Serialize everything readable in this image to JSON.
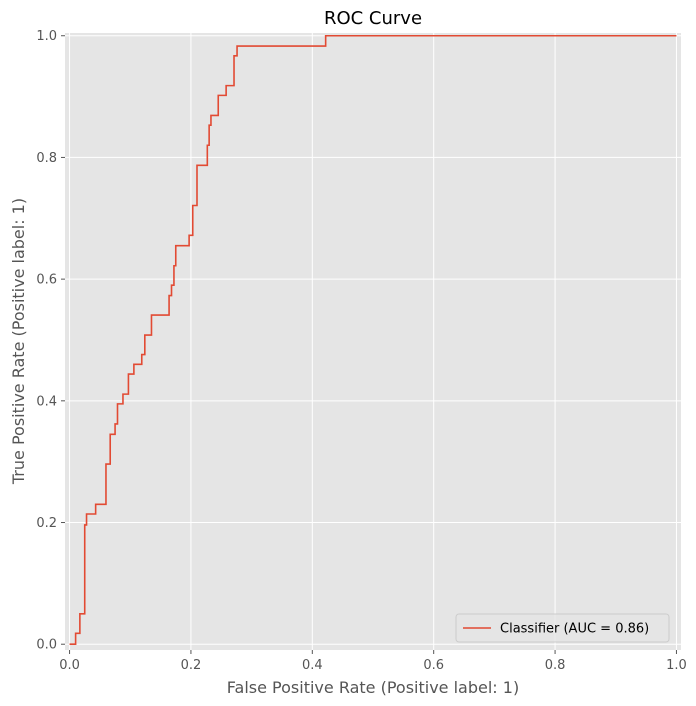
{
  "chart_data": {
    "type": "line",
    "title": "ROC Curve",
    "xlabel": "False Positive Rate (Positive label: 1)",
    "ylabel": "True Positive Rate (Positive label: 1)",
    "xlim": [
      0,
      1
    ],
    "ylim": [
      0,
      1
    ],
    "x_ticks": [
      "0.0",
      "0.2",
      "0.4",
      "0.6",
      "0.8",
      "1.0"
    ],
    "y_ticks": [
      "0.0",
      "0.2",
      "0.4",
      "0.6",
      "0.8",
      "1.0"
    ],
    "grid": true,
    "legend_position": "lower-right",
    "series": [
      {
        "name": "Classifier (AUC = 0.86)",
        "color": "#E24A33",
        "drawstyle": "steps-post",
        "x": [
          0.0,
          0.01,
          0.01,
          0.017,
          0.017,
          0.025,
          0.025,
          0.028,
          0.028,
          0.043,
          0.043,
          0.06,
          0.06,
          0.067,
          0.067,
          0.075,
          0.075,
          0.079,
          0.079,
          0.088,
          0.088,
          0.097,
          0.097,
          0.106,
          0.106,
          0.119,
          0.119,
          0.124,
          0.124,
          0.135,
          0.135,
          0.164,
          0.164,
          0.168,
          0.168,
          0.172,
          0.172,
          0.175,
          0.175,
          0.197,
          0.197,
          0.203,
          0.203,
          0.21,
          0.21,
          0.227,
          0.227,
          0.23,
          0.23,
          0.233,
          0.233,
          0.245,
          0.245,
          0.258,
          0.258,
          0.271,
          0.271,
          0.276,
          0.276,
          0.422,
          0.422,
          1.0
        ],
        "y": [
          0.0,
          0.0,
          0.018,
          0.018,
          0.05,
          0.05,
          0.196,
          0.196,
          0.214,
          0.214,
          0.23,
          0.23,
          0.296,
          0.296,
          0.345,
          0.345,
          0.362,
          0.362,
          0.395,
          0.395,
          0.411,
          0.411,
          0.444,
          0.444,
          0.46,
          0.46,
          0.476,
          0.476,
          0.508,
          0.508,
          0.541,
          0.541,
          0.573,
          0.573,
          0.59,
          0.59,
          0.622,
          0.622,
          0.655,
          0.655,
          0.672,
          0.672,
          0.721,
          0.721,
          0.787,
          0.787,
          0.82,
          0.82,
          0.853,
          0.853,
          0.869,
          0.869,
          0.902,
          0.902,
          0.918,
          0.918,
          0.967,
          0.967,
          0.983,
          0.983,
          1.0,
          1.0
        ]
      }
    ]
  },
  "colors": {
    "plot_background": "#E5E5E5",
    "grid": "#FFFFFF",
    "text": "#555555"
  }
}
